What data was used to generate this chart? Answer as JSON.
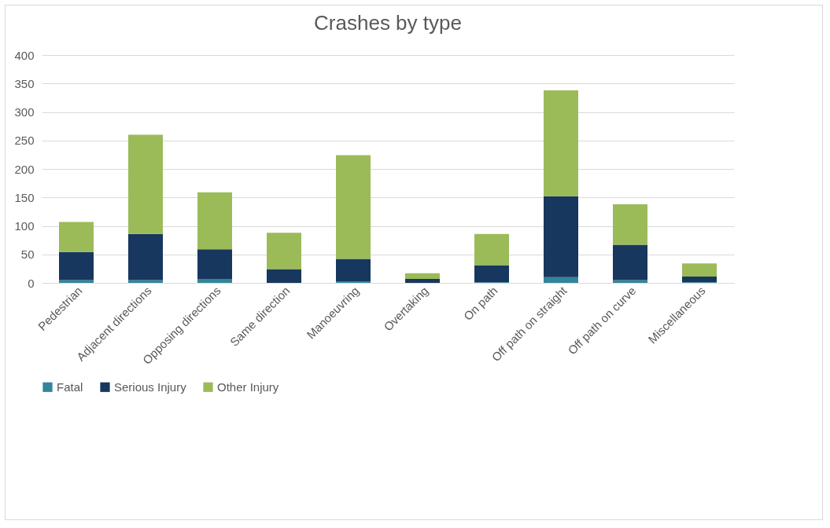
{
  "chart_data": {
    "type": "bar",
    "title": "Crashes by type",
    "stacked": true,
    "categories": [
      "Pedestrian",
      "Adjacent directions",
      "Opposing directions",
      "Same direction",
      "Manoeuvring",
      "Overtaking",
      "On path",
      "Off path on straight",
      "Off path on curve",
      "Miscellaneous"
    ],
    "series": [
      {
        "name": "Fatal",
        "color": "#31859c",
        "values": [
          5,
          5,
          7,
          0,
          2,
          0,
          1,
          10,
          5,
          1
        ]
      },
      {
        "name": "Serious Injury",
        "color": "#17375e",
        "values": [
          49,
          81,
          52,
          24,
          40,
          7,
          30,
          142,
          62,
          10
        ]
      },
      {
        "name": "Other Injury",
        "color": "#9bbb59",
        "values": [
          53,
          174,
          100,
          64,
          182,
          10,
          55,
          186,
          71,
          23
        ]
      }
    ],
    "ylim": [
      0,
      400
    ],
    "yticks": [
      0,
      50,
      100,
      150,
      200,
      250,
      300,
      350,
      400
    ],
    "grid": "y",
    "legend": "bottom"
  }
}
